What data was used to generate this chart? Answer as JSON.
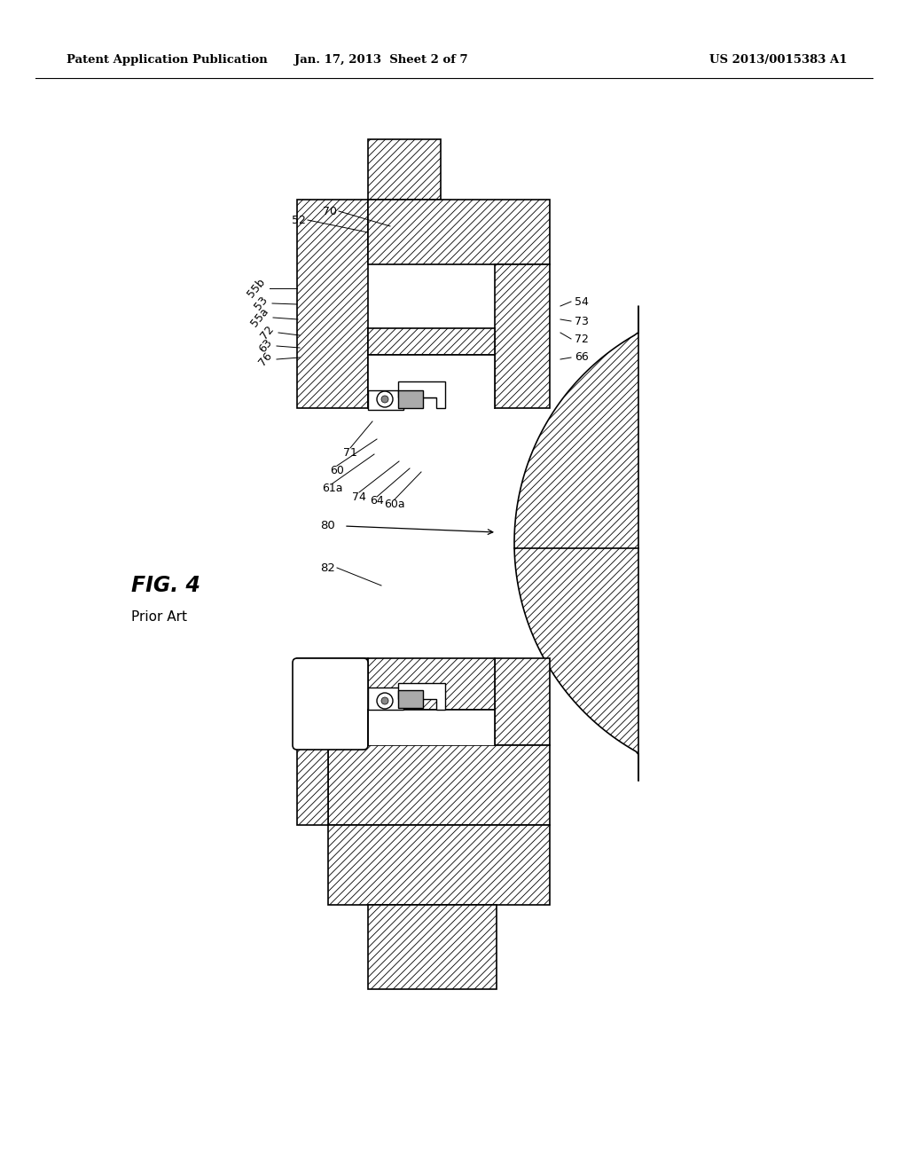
{
  "bg_color": "#ffffff",
  "header_left": "Patent Application Publication",
  "header_center": "Jan. 17, 2013  Sheet 2 of 7",
  "header_right": "US 2013/0015383 A1",
  "fig_label": "FIG. 4",
  "fig_sublabel": "Prior Art"
}
